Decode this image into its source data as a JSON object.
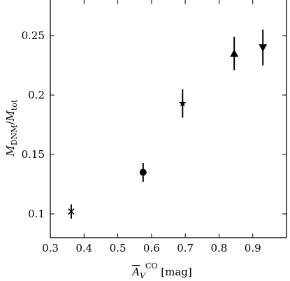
{
  "chart_data": {
    "type": "scatter",
    "xlabel": "A̅_V^CO [mag]",
    "ylabel": "M_DNM/M_tot",
    "xlim": [
      0.3,
      1.0
    ],
    "ylim": [
      0.08,
      0.28
    ],
    "x_ticks": [
      0.3,
      0.4,
      0.5,
      0.6,
      0.7,
      0.8,
      0.9
    ],
    "x_tick_labels": [
      "0.3",
      "0.4",
      "0.5",
      "0.6",
      "0.7",
      "0.8",
      "0.9"
    ],
    "y_ticks": [
      0.1,
      0.15,
      0.2,
      0.25
    ],
    "y_tick_labels": [
      "0.1",
      "0.15",
      "0.2",
      "0.25"
    ],
    "points": [
      {
        "x": 0.362,
        "y": 0.102,
        "err": 0.006,
        "marker": "x"
      },
      {
        "x": 0.575,
        "y": 0.135,
        "err": 0.008,
        "marker": "circle"
      },
      {
        "x": 0.692,
        "y": 0.193,
        "err": 0.012,
        "marker": "star"
      },
      {
        "x": 0.845,
        "y": 0.235,
        "err": 0.014,
        "marker": "triangle-up"
      },
      {
        "x": 0.93,
        "y": 0.24,
        "err": 0.015,
        "marker": "triangle-down"
      }
    ],
    "grid": false,
    "color": "#000000"
  }
}
